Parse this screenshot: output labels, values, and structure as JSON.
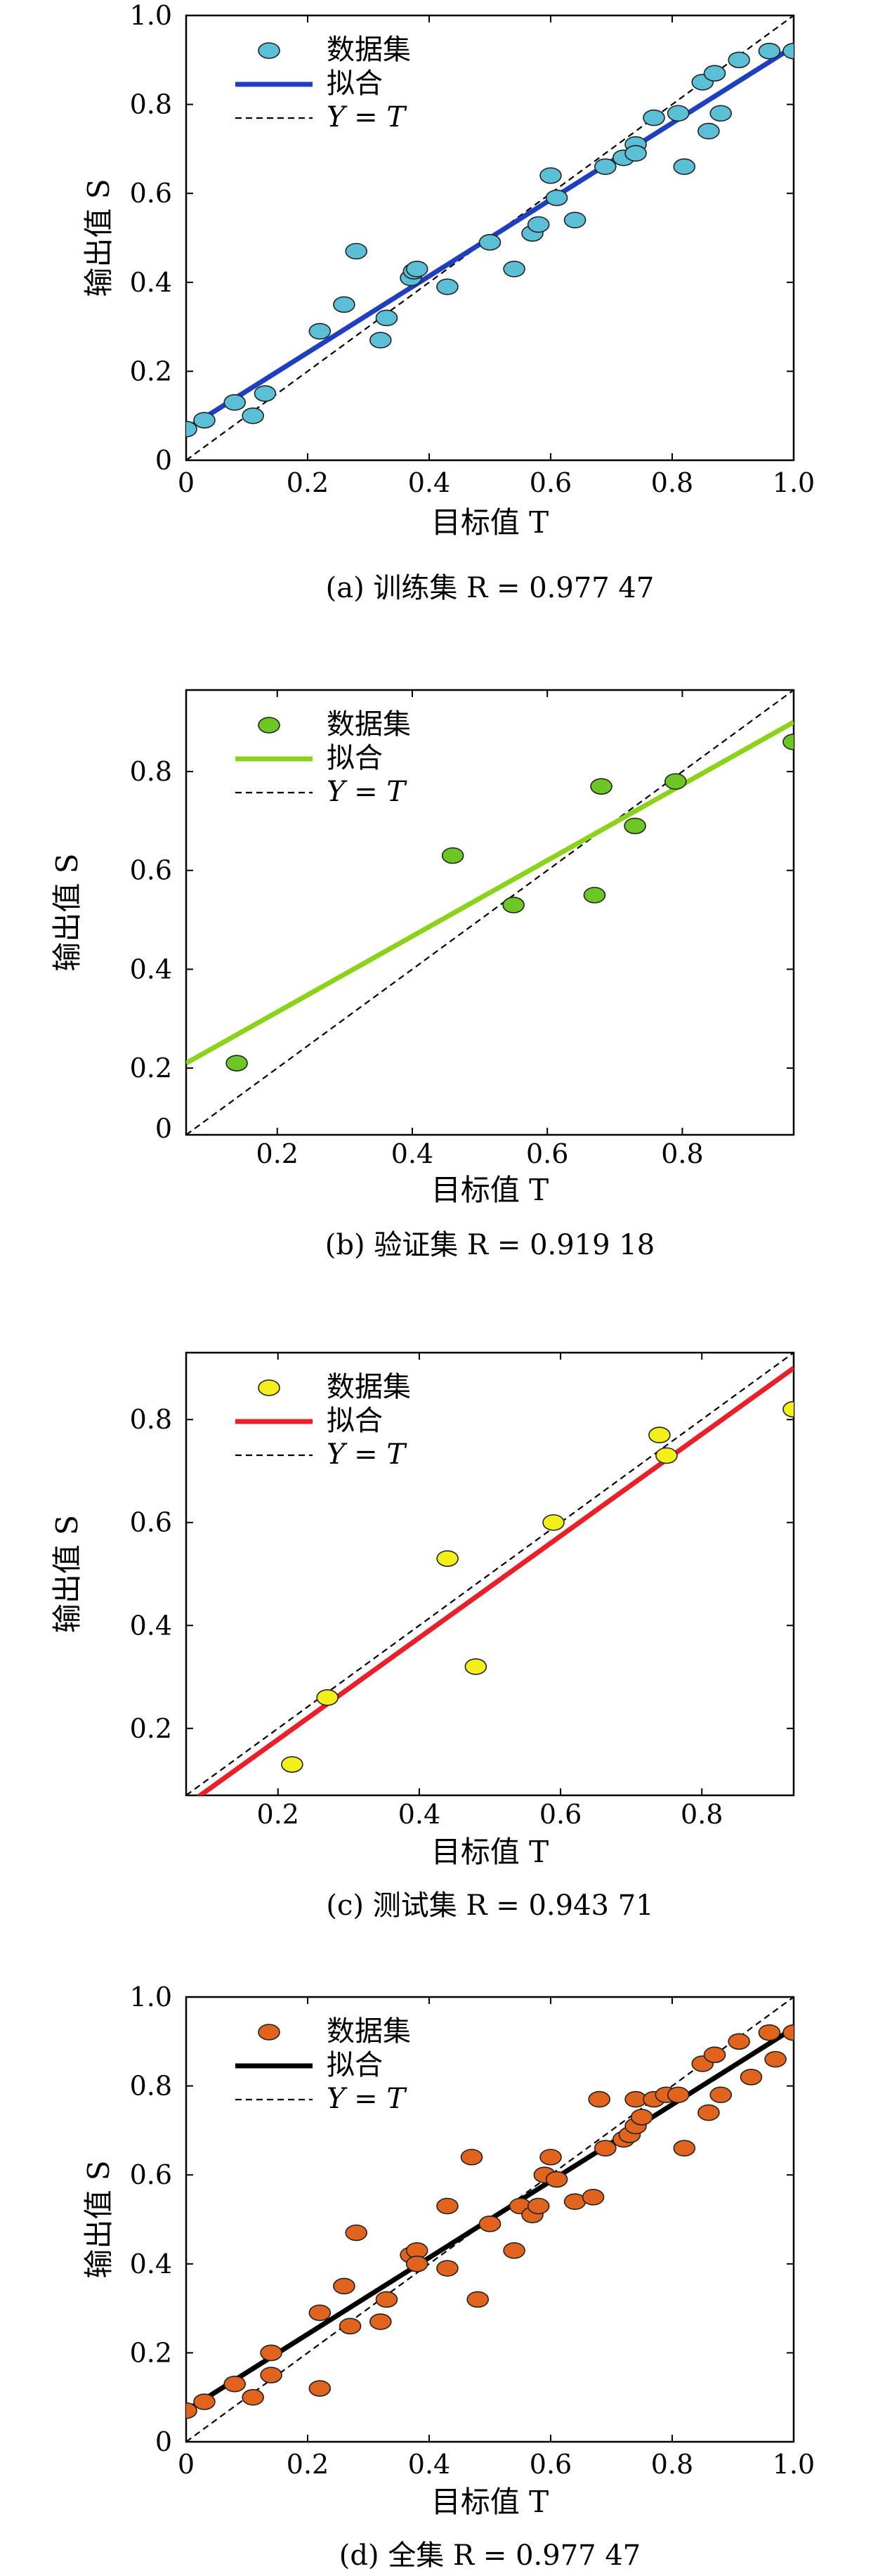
{
  "chart_data": [
    {
      "id": "a",
      "type": "scatter",
      "caption": "(a) 训练集 R = 0.977 47",
      "xlabel": "目标值 T",
      "ylabel": "输出值 S",
      "xlim": [
        0,
        1
      ],
      "ylim": [
        0,
        1
      ],
      "xticks": [
        0,
        0.2,
        0.4,
        0.6,
        0.8,
        1.0
      ],
      "xtick_labels": [
        "0",
        "0.2",
        "0.4",
        "0.6",
        "0.8",
        "1.0"
      ],
      "yticks": [
        0,
        0.2,
        0.4,
        0.6,
        0.8,
        1.0
      ],
      "ytick_labels": [
        "0",
        "0.2",
        "0.4",
        "0.6",
        "0.8",
        "1.0"
      ],
      "legend": [
        "数据集",
        "拟合",
        "Y = T"
      ],
      "legend_position": "top-left",
      "colors": {
        "points": "#5bc0d6",
        "fit": "#1f3fbf",
        "identity": "#000000"
      },
      "fit": {
        "x": [
          0,
          1
        ],
        "y": [
          0.07,
          0.93
        ]
      },
      "points": [
        [
          0.0,
          0.07
        ],
        [
          0.03,
          0.09
        ],
        [
          0.08,
          0.13
        ],
        [
          0.11,
          0.1
        ],
        [
          0.13,
          0.15
        ],
        [
          0.22,
          0.29
        ],
        [
          0.26,
          0.35
        ],
        [
          0.28,
          0.47
        ],
        [
          0.32,
          0.27
        ],
        [
          0.33,
          0.32
        ],
        [
          0.37,
          0.41
        ],
        [
          0.375,
          0.425
        ],
        [
          0.38,
          0.43
        ],
        [
          0.43,
          0.39
        ],
        [
          0.5,
          0.49
        ],
        [
          0.54,
          0.43
        ],
        [
          0.57,
          0.51
        ],
        [
          0.58,
          0.53
        ],
        [
          0.6,
          0.64
        ],
        [
          0.61,
          0.59
        ],
        [
          0.64,
          0.54
        ],
        [
          0.69,
          0.66
        ],
        [
          0.72,
          0.68
        ],
        [
          0.74,
          0.71
        ],
        [
          0.74,
          0.69
        ],
        [
          0.77,
          0.77
        ],
        [
          0.81,
          0.78
        ],
        [
          0.82,
          0.66
        ],
        [
          0.85,
          0.85
        ],
        [
          0.86,
          0.74
        ],
        [
          0.87,
          0.87
        ],
        [
          0.88,
          0.78
        ],
        [
          0.91,
          0.9
        ],
        [
          0.96,
          0.92
        ],
        [
          1.0,
          0.92
        ]
      ]
    },
    {
      "id": "b",
      "type": "scatter",
      "caption": "(b) 验证集 R = 0.919 18",
      "xlabel": "目标值 T",
      "ylabel": "输出值 S",
      "xlim": [
        0.065,
        0.965
      ],
      "ylim": [
        0.065,
        0.965
      ],
      "xticks": [
        0.2,
        0.4,
        0.6,
        0.8
      ],
      "xtick_labels": [
        "0.2",
        "0.4",
        "0.6",
        "0.8"
      ],
      "yticks": [
        0.2,
        0.4,
        0.6,
        0.8
      ],
      "ytick_labels": [
        "0.2",
        "0.4",
        "0.6",
        "0.8"
      ],
      "zero_label": "0",
      "legend": [
        "数据集",
        "拟合",
        "Y = T"
      ],
      "legend_position": "top-left",
      "colors": {
        "points": "#6cc724",
        "fit": "#8cd11b",
        "identity": "#000000"
      },
      "fit": {
        "x": [
          0.065,
          0.965
        ],
        "y": [
          0.21,
          0.9
        ]
      },
      "points": [
        [
          0.14,
          0.21
        ],
        [
          0.46,
          0.63
        ],
        [
          0.55,
          0.53
        ],
        [
          0.67,
          0.55
        ],
        [
          0.68,
          0.77
        ],
        [
          0.73,
          0.69
        ],
        [
          0.79,
          0.78
        ],
        [
          0.965,
          0.86
        ]
      ]
    },
    {
      "id": "c",
      "type": "scatter",
      "caption": "(c) 测试集 R = 0.943 71",
      "xlabel": "目标值 T",
      "ylabel": "输出值 S",
      "xlim": [
        0.07,
        0.93
      ],
      "ylim": [
        0.07,
        0.93
      ],
      "xticks": [
        0.2,
        0.4,
        0.6,
        0.8
      ],
      "xtick_labels": [
        "0.2",
        "0.4",
        "0.6",
        "0.8"
      ],
      "yticks": [
        0.2,
        0.4,
        0.6,
        0.8
      ],
      "ytick_labels": [
        "0.2",
        "0.4",
        "0.6",
        "0.8"
      ],
      "legend": [
        "数据集",
        "拟合",
        "Y = T"
      ],
      "legend_position": "top-left",
      "colors": {
        "points": "#f2ef1a",
        "fit": "#e8202a",
        "identity": "#000000"
      },
      "fit": {
        "x": [
          0.07,
          0.93
        ],
        "y": [
          0.05,
          0.9
        ]
      },
      "points": [
        [
          0.22,
          0.13
        ],
        [
          0.27,
          0.26
        ],
        [
          0.44,
          0.53
        ],
        [
          0.48,
          0.32
        ],
        [
          0.59,
          0.6
        ],
        [
          0.74,
          0.77
        ],
        [
          0.75,
          0.73
        ],
        [
          0.93,
          0.82
        ]
      ]
    },
    {
      "id": "d",
      "type": "scatter",
      "caption": "(d) 全集 R = 0.977 47",
      "xlabel": "目标值 T",
      "ylabel": "输出值 S",
      "xlim": [
        0,
        1
      ],
      "ylim": [
        0,
        1
      ],
      "xticks": [
        0,
        0.2,
        0.4,
        0.6,
        0.8,
        1.0
      ],
      "xtick_labels": [
        "0",
        "0.2",
        "0.4",
        "0.6",
        "0.8",
        "1.0"
      ],
      "yticks": [
        0,
        0.2,
        0.4,
        0.6,
        0.8,
        1.0
      ],
      "ytick_labels": [
        "0",
        "0.2",
        "0.4",
        "0.6",
        "0.8",
        "1.0"
      ],
      "legend": [
        "数据集",
        "拟合",
        "Y = T"
      ],
      "legend_position": "top-left",
      "colors": {
        "points": "#e0631e",
        "fit": "#000000",
        "identity": "#000000"
      },
      "fit": {
        "x": [
          0,
          1
        ],
        "y": [
          0.07,
          0.93
        ]
      },
      "points": [
        [
          0.0,
          0.07
        ],
        [
          0.03,
          0.09
        ],
        [
          0.08,
          0.13
        ],
        [
          0.11,
          0.1
        ],
        [
          0.14,
          0.2
        ],
        [
          0.14,
          0.15
        ],
        [
          0.22,
          0.29
        ],
        [
          0.22,
          0.12
        ],
        [
          0.26,
          0.35
        ],
        [
          0.27,
          0.26
        ],
        [
          0.28,
          0.47
        ],
        [
          0.32,
          0.27
        ],
        [
          0.33,
          0.32
        ],
        [
          0.37,
          0.42
        ],
        [
          0.38,
          0.43
        ],
        [
          0.38,
          0.4
        ],
        [
          0.43,
          0.53
        ],
        [
          0.43,
          0.39
        ],
        [
          0.47,
          0.64
        ],
        [
          0.48,
          0.32
        ],
        [
          0.5,
          0.49
        ],
        [
          0.54,
          0.43
        ],
        [
          0.55,
          0.53
        ],
        [
          0.57,
          0.51
        ],
        [
          0.58,
          0.53
        ],
        [
          0.59,
          0.6
        ],
        [
          0.6,
          0.64
        ],
        [
          0.61,
          0.59
        ],
        [
          0.64,
          0.54
        ],
        [
          0.67,
          0.55
        ],
        [
          0.68,
          0.77
        ],
        [
          0.69,
          0.66
        ],
        [
          0.72,
          0.68
        ],
        [
          0.73,
          0.69
        ],
        [
          0.74,
          0.77
        ],
        [
          0.74,
          0.71
        ],
        [
          0.75,
          0.73
        ],
        [
          0.77,
          0.77
        ],
        [
          0.79,
          0.78
        ],
        [
          0.81,
          0.78
        ],
        [
          0.82,
          0.66
        ],
        [
          0.85,
          0.85
        ],
        [
          0.86,
          0.74
        ],
        [
          0.87,
          0.87
        ],
        [
          0.88,
          0.78
        ],
        [
          0.91,
          0.9
        ],
        [
          0.93,
          0.82
        ],
        [
          0.96,
          0.92
        ],
        [
          0.97,
          0.86
        ],
        [
          1.0,
          0.92
        ]
      ]
    }
  ]
}
